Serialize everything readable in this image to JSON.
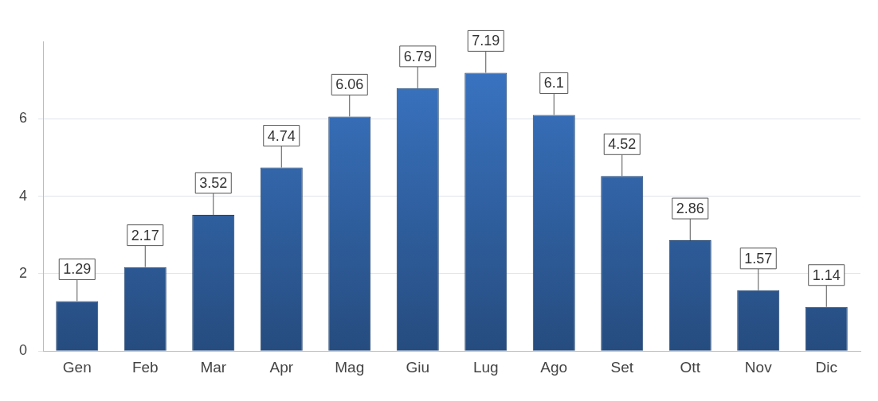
{
  "chart_data": {
    "type": "bar",
    "categories": [
      "Gen",
      "Feb",
      "Mar",
      "Apr",
      "Mag",
      "Giu",
      "Lug",
      "Ago",
      "Set",
      "Ott",
      "Nov",
      "Dic"
    ],
    "values": [
      1.29,
      2.17,
      3.52,
      4.74,
      6.06,
      6.79,
      7.19,
      6.1,
      4.52,
      2.86,
      1.57,
      1.14
    ],
    "color": "#2f5f9f",
    "ylim": [
      0,
      8
    ],
    "yticks": [
      0,
      2,
      4,
      6
    ],
    "grid": "y",
    "legend": false,
    "data_labels": true
  }
}
